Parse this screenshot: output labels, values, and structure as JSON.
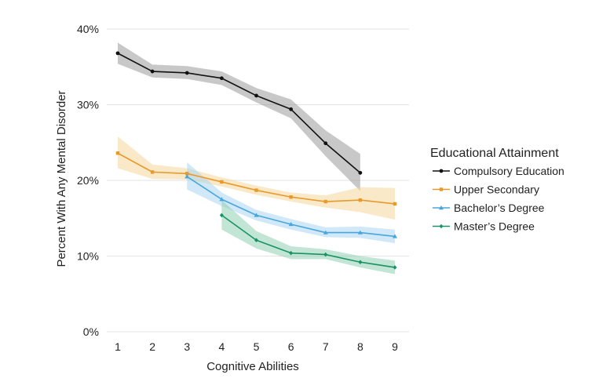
{
  "chart_data": {
    "type": "line",
    "title": "",
    "xlabel": "Cognitive Abilities",
    "ylabel": "Percent With Any Mental Disorder",
    "x": [
      1,
      2,
      3,
      4,
      5,
      6,
      7,
      8,
      9
    ],
    "xlim": [
      1,
      9
    ],
    "ylim": [
      0,
      40
    ],
    "yticks": [
      0,
      10,
      20,
      30,
      40
    ],
    "ytick_labels": [
      "0%",
      "10%",
      "20%",
      "30%",
      "40%"
    ],
    "xtick_labels": [
      "1",
      "2",
      "3",
      "4",
      "5",
      "6",
      "7",
      "8",
      "9"
    ],
    "grid": "horizontal",
    "legend": {
      "title": "Educational Attainment",
      "position": "right"
    },
    "series": [
      {
        "name": "Compulsory Education",
        "color": "#111111",
        "band_color": "#9a9a9a",
        "marker": "circle",
        "x": [
          1,
          2,
          3,
          4,
          5,
          6,
          7,
          8
        ],
        "values": [
          36.8,
          34.4,
          34.2,
          33.5,
          31.2,
          29.4,
          24.9,
          21.0
        ],
        "lower": [
          35.4,
          33.6,
          33.4,
          32.6,
          30.3,
          28.2,
          23.2,
          18.6
        ],
        "upper": [
          38.2,
          35.3,
          35.1,
          34.4,
          32.2,
          30.7,
          26.6,
          23.5
        ]
      },
      {
        "name": "Upper Secondary",
        "color": "#e79a2c",
        "band_color": "#f5d79a",
        "marker": "square",
        "x": [
          1,
          2,
          3,
          4,
          5,
          6,
          7,
          8,
          9
        ],
        "values": [
          23.6,
          21.1,
          20.9,
          19.8,
          18.7,
          17.8,
          17.2,
          17.4,
          16.9
        ],
        "lower": [
          21.6,
          20.2,
          20.1,
          19.2,
          18.1,
          17.2,
          16.4,
          15.8,
          14.8
        ],
        "upper": [
          25.8,
          22.1,
          21.6,
          20.4,
          19.3,
          18.4,
          18.0,
          19.1,
          19.0
        ]
      },
      {
        "name": "Bachelor's Degree",
        "color": "#4aa6da",
        "band_color": "#a9d6f0",
        "marker": "triangle",
        "x": [
          3,
          4,
          5,
          6,
          7,
          8,
          9
        ],
        "values": [
          20.5,
          17.5,
          15.4,
          14.2,
          13.1,
          13.1,
          12.6
        ],
        "lower": [
          18.8,
          16.6,
          14.7,
          13.5,
          12.5,
          12.4,
          11.7
        ],
        "upper": [
          22.4,
          18.4,
          16.1,
          14.9,
          13.8,
          13.9,
          13.5
        ]
      },
      {
        "name": "Master's Degree",
        "color": "#1a9266",
        "band_color": "#8fd0b3",
        "marker": "diamond",
        "x": [
          4,
          5,
          6,
          7,
          8,
          9
        ],
        "values": [
          15.4,
          12.1,
          10.4,
          10.2,
          9.2,
          8.5
        ],
        "lower": [
          13.5,
          11.0,
          9.6,
          9.6,
          8.5,
          7.6
        ],
        "upper": [
          17.4,
          13.3,
          11.3,
          10.9,
          10.0,
          9.4
        ]
      }
    ]
  }
}
